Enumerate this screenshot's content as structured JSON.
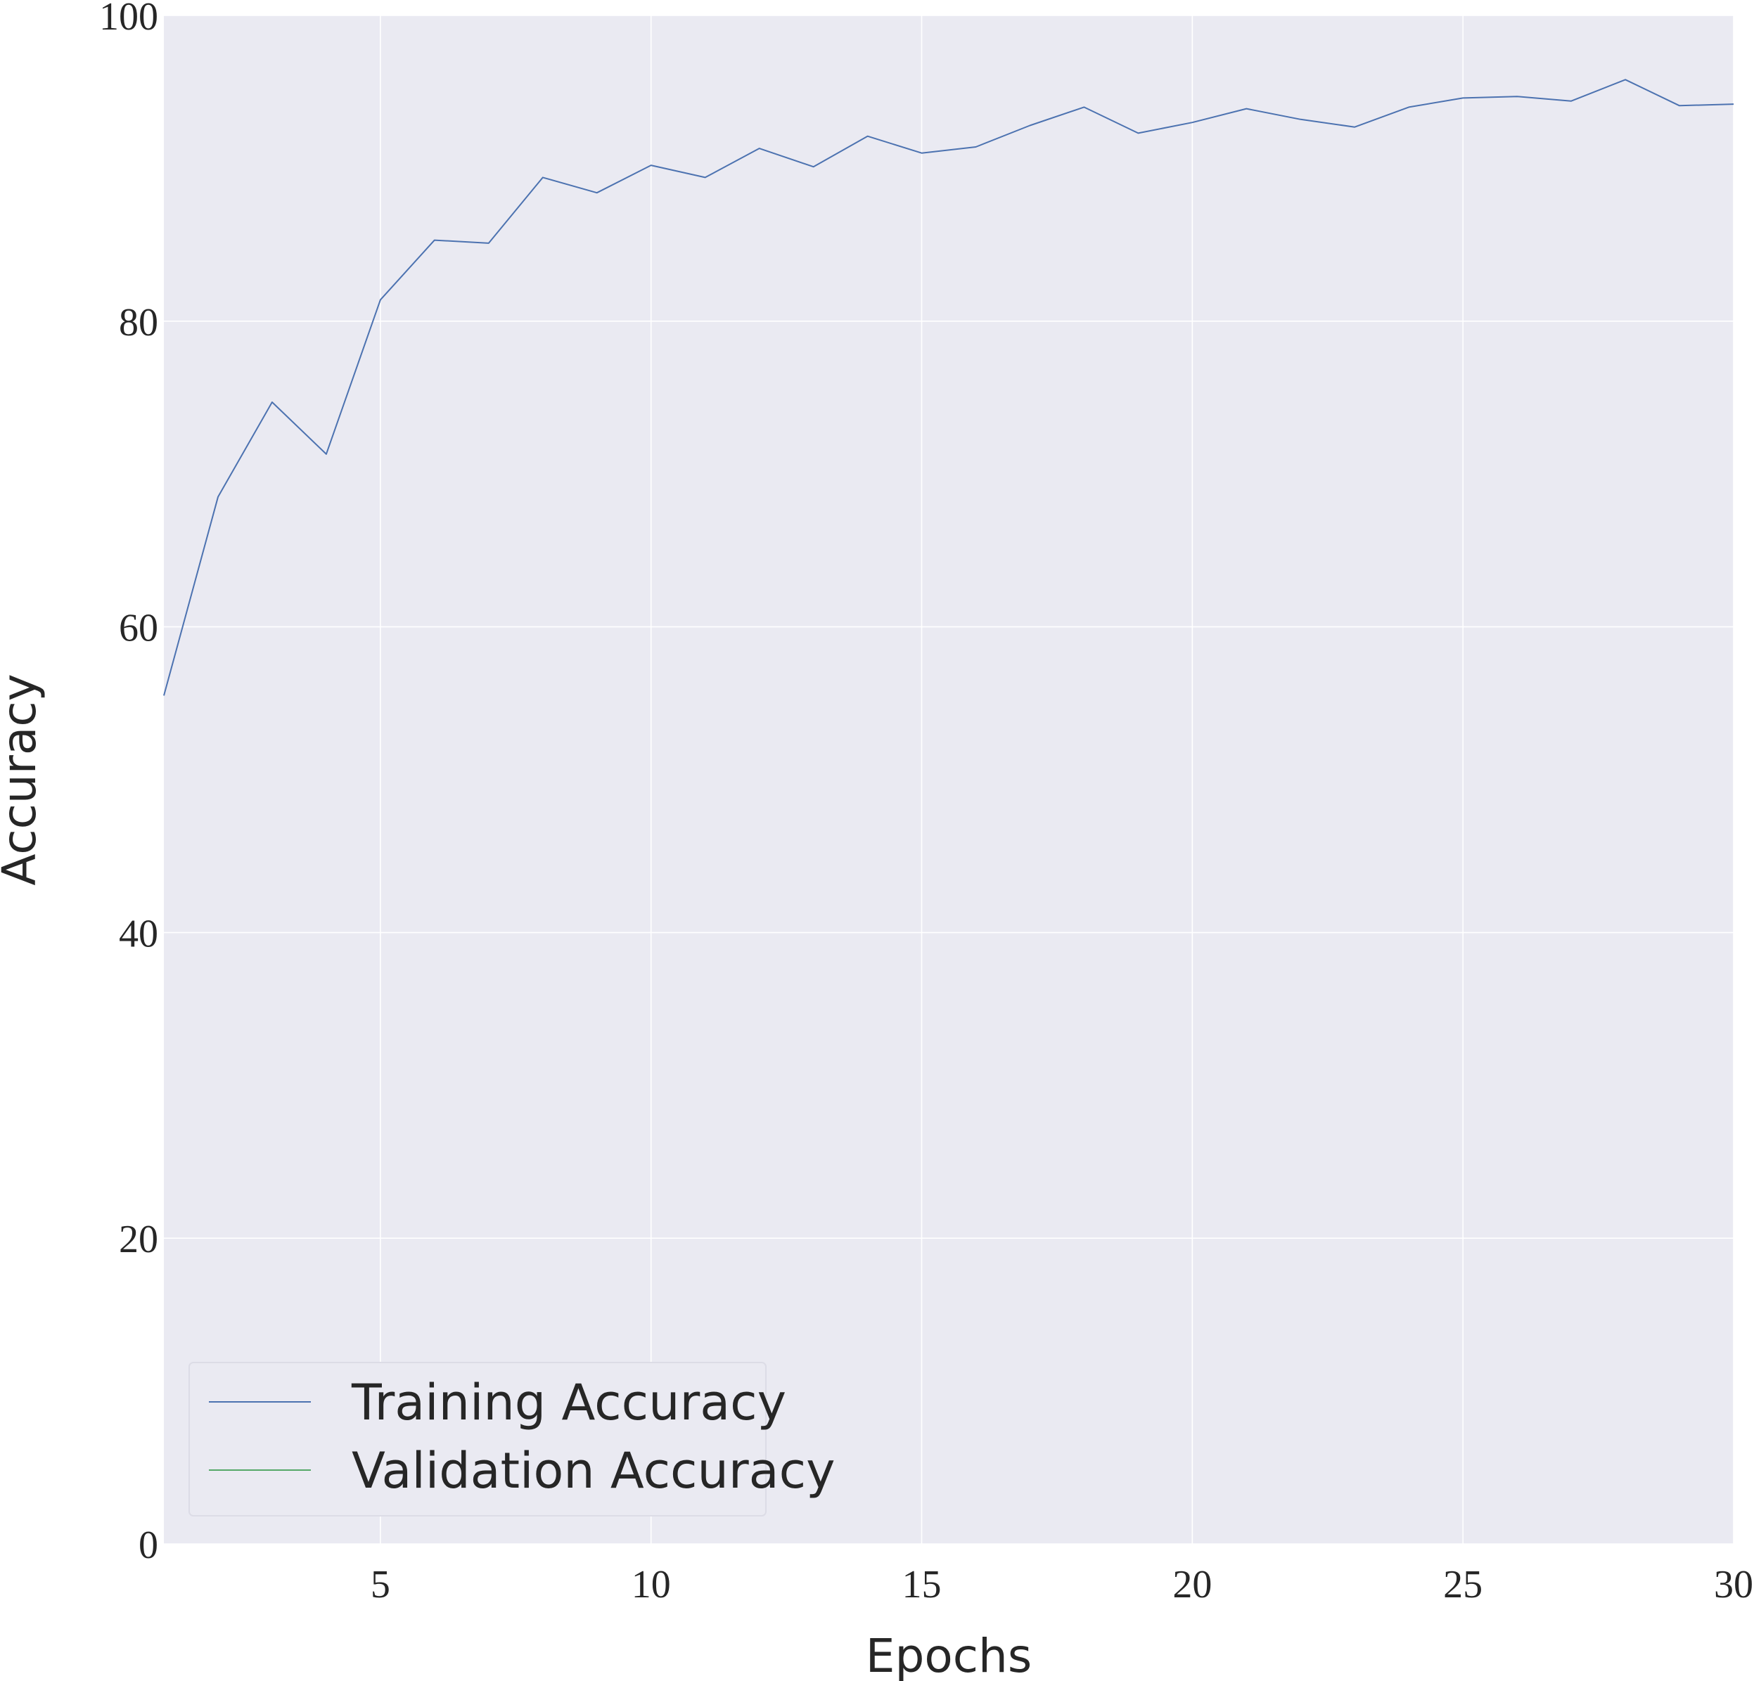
{
  "chart_data": {
    "type": "line",
    "xlabel": "Epochs",
    "ylabel": "Accuracy",
    "xlim": [
      1,
      30
    ],
    "ylim": [
      0,
      100
    ],
    "xticks": [
      5,
      10,
      15,
      20,
      25,
      30
    ],
    "yticks": [
      0,
      20,
      40,
      60,
      80,
      100
    ],
    "grid": true,
    "legend_position": "lower-left",
    "background_color": "#eaeaf2",
    "series": [
      {
        "name": "Training Accuracy",
        "color": "#4c72b0",
        "x": [
          1,
          2,
          3,
          4,
          5,
          6,
          7,
          8,
          9,
          10,
          11,
          12,
          13,
          14,
          15,
          16,
          17,
          18,
          19,
          20,
          21,
          22,
          23,
          24,
          25,
          26,
          27,
          28,
          29,
          30
        ],
        "y": [
          55.5,
          68.5,
          74.7,
          71.3,
          81.4,
          85.3,
          85.1,
          89.4,
          88.4,
          90.2,
          89.4,
          91.3,
          90.1,
          92.1,
          91.0,
          91.4,
          92.8,
          94.0,
          92.3,
          93.0,
          93.9,
          93.2,
          92.7,
          94.0,
          94.6,
          94.7,
          94.4,
          95.8,
          94.1,
          94.2
        ]
      },
      {
        "name": "Validation Accuracy",
        "color": "#55a868",
        "x": [],
        "y": []
      }
    ]
  }
}
